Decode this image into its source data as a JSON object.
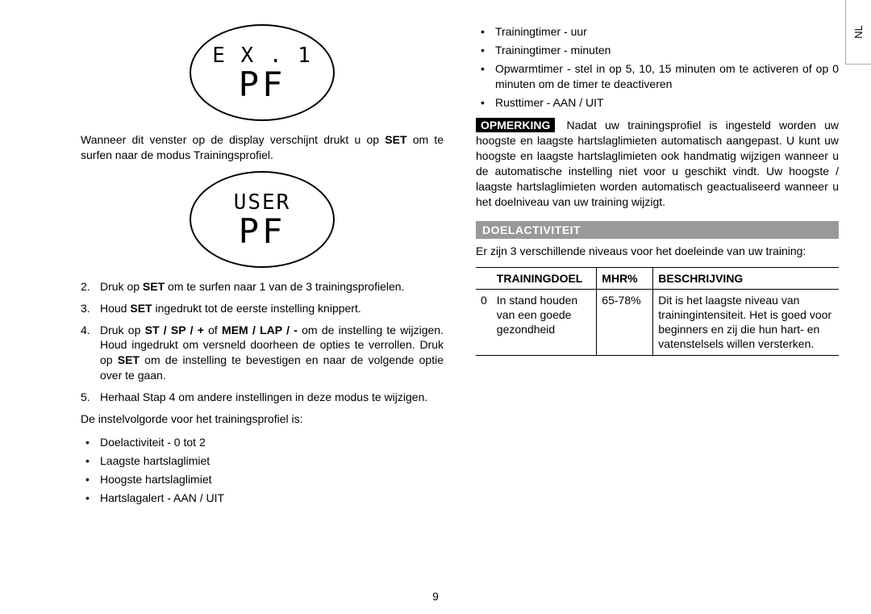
{
  "langTab": "NL",
  "pageNumber": "9",
  "left": {
    "lcd1": {
      "line1": "E X . 1",
      "line2": "PF"
    },
    "para1_pre": "Wanneer dit venster op de display verschijnt drukt u op ",
    "para1_bold": "SET",
    "para1_post": " om te surfen naar de modus Trainingsprofiel.",
    "lcd2": {
      "line1": "USER",
      "line2": "PF"
    },
    "steps": [
      {
        "num": "2.",
        "parts": [
          {
            "t": "Druk op "
          },
          {
            "t": "SET",
            "b": true
          },
          {
            "t": " om te surfen naar 1 van de 3 trainingsprofielen."
          }
        ]
      },
      {
        "num": "3.",
        "parts": [
          {
            "t": "Houd "
          },
          {
            "t": "SET",
            "b": true
          },
          {
            "t": " ingedrukt tot de eerste instelling knippert."
          }
        ]
      },
      {
        "num": "4.",
        "parts": [
          {
            "t": "Druk op "
          },
          {
            "t": "ST / SP / +",
            "b": true
          },
          {
            "t": " of "
          },
          {
            "t": "MEM / LAP / -",
            "b": true
          },
          {
            "t": " om de instelling te wijzigen. Houd ingedrukt om versneld doorheen de opties te verrollen. Druk op "
          },
          {
            "t": "SET",
            "b": true
          },
          {
            "t": " om de instelling te bevestigen en naar de volgende optie over te gaan."
          }
        ]
      },
      {
        "num": "5.",
        "parts": [
          {
            "t": "Herhaal Stap 4 om andere instellingen in deze modus te wijzigen."
          }
        ]
      }
    ],
    "seqIntro": "De instelvolgorde voor het trainingsprofiel is:",
    "seqItems": [
      "Doelactiviteit - 0 tot 2",
      "Laagste hartslaglimiet",
      "Hoogste hartslaglimiet",
      "Hartslagalert - AAN / UIT"
    ]
  },
  "right": {
    "seqItems": [
      {
        "text": "Trainingtimer - uur",
        "justify": false
      },
      {
        "text": "Trainingtimer - minuten",
        "justify": false
      },
      {
        "text": "Opwarmtimer - stel in op 5, 10, 15 minuten om te activeren of op 0 minuten om de timer te deactiveren",
        "justify": true
      },
      {
        "text": "Rusttimer - AAN / UIT",
        "justify": false
      }
    ],
    "noteLabel": "OPMERKING",
    "noteBody": " Nadat uw trainingsprofiel is ingesteld worden uw hoogste en laagste hartslaglimieten automatisch aangepast. U kunt uw hoogste en laagste hartslaglimieten ook handmatig wijzigen wanneer u de automatische instelling niet voor u geschikt vindt. Uw hoogste / laagste hartslaglimieten worden automatisch geactualiseerd wanneer u het doelniveau van uw training wijzigt.",
    "sectionHeader": "DOELACTIVITEIT",
    "sectionIntro": "Er zijn 3 verschillende niveaus voor het doeleinde van uw training:",
    "table": {
      "headers": [
        "",
        "TRAININGDOEL",
        "MHR%",
        "BESCHRIJVING"
      ],
      "row": {
        "idx": "0",
        "goal": "In stand houden van een goede gezondheid",
        "mhr": "65-78%",
        "desc": "Dit is het laagste niveau van trainingintensiteit. Het is goed voor beginners en zij die hun hart- en vatenstelsels willen versterken."
      }
    }
  }
}
